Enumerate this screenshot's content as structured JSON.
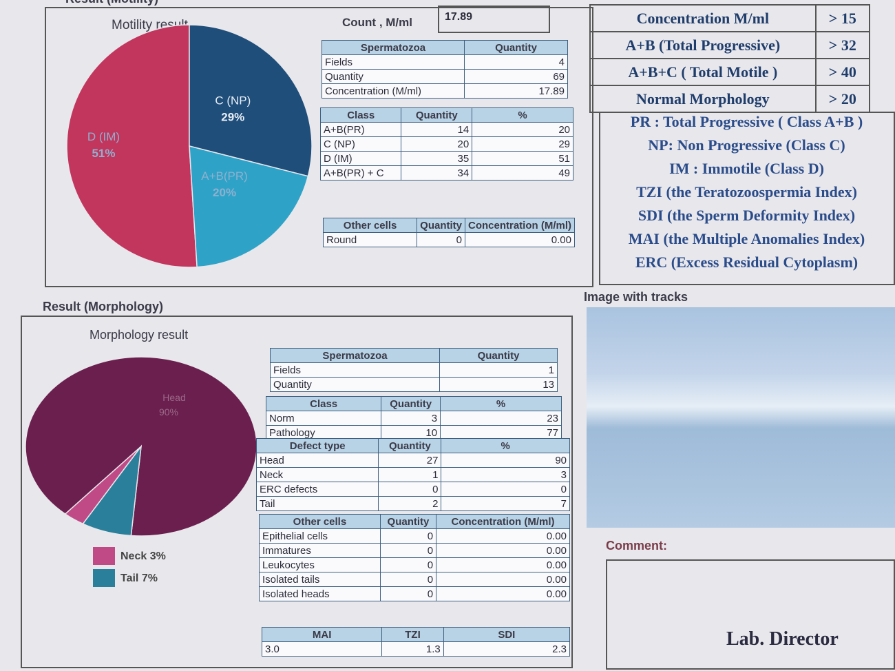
{
  "motility": {
    "section_title": "Result (Motility)",
    "title": "Motility result",
    "count_label": "Count , M/ml",
    "count_value": "17.89",
    "pie": {
      "type": "pie",
      "categories": [
        "D (IM)",
        "C (NP)",
        "A+B(PR)"
      ],
      "values": [
        51,
        29,
        20
      ],
      "value_labels": [
        "51%",
        "29%",
        "20%"
      ],
      "colors": [
        "#c2365e",
        "#1f4e7a",
        "#2ea3c7"
      ]
    },
    "spermatozoa_table": {
      "header": [
        "Spermatozoa",
        "Quantity"
      ],
      "rows": [
        [
          "Fields",
          "4"
        ],
        [
          "Quantity",
          "69"
        ],
        [
          "Concentration (M/ml)",
          "17.89"
        ]
      ]
    },
    "class_table": {
      "header": [
        "Class",
        "Quantity",
        "%"
      ],
      "rows": [
        [
          "A+B(PR)",
          "14",
          "20"
        ],
        [
          "C (NP)",
          "20",
          "29"
        ],
        [
          "D (IM)",
          "35",
          "51"
        ],
        [
          "A+B(PR) + C",
          "34",
          "49"
        ]
      ]
    },
    "other_cells_table": {
      "header": [
        "Other cells",
        "Quantity",
        "Concentration (M/ml)"
      ],
      "rows": [
        [
          "Round",
          "0",
          "0.00"
        ]
      ]
    }
  },
  "reference": {
    "rows": [
      [
        "Concentration M/ml",
        "> 15"
      ],
      [
        "A+B (Total Progressive)",
        "> 32"
      ],
      [
        "A+B+C ( Total Motile )",
        "> 40"
      ],
      [
        "Normal Morphology",
        "> 20"
      ]
    ]
  },
  "abbreviations": [
    "PR : Total Progressive ( Class A+B )",
    "NP: Non Progressive (Class C)",
    "IM : Immotile (Class D)",
    "TZI (the Teratozoospermia Index)",
    "SDI (the Sperm Deformity Index)",
    "MAI (the Multiple Anomalies Index)",
    "ERC (Excess Residual Cytoplasm)"
  ],
  "morphology": {
    "section_title": "Result (Morphology)",
    "title": "Morphology result",
    "pie": {
      "type": "pie",
      "categories": [
        "Head",
        "Neck",
        "Tail"
      ],
      "values": [
        90,
        3,
        7
      ],
      "value_labels": [
        "90%",
        "3%",
        "7%"
      ],
      "colors": [
        "#6b1f4e",
        "#c04a86",
        "#2a7f9a"
      ]
    },
    "spermatozoa_table": {
      "header": [
        "Spermatozoa",
        "Quantity"
      ],
      "rows": [
        [
          "Fields",
          "1"
        ],
        [
          "Quantity",
          "13"
        ]
      ]
    },
    "class_table": {
      "header": [
        "Class",
        "Quantity",
        "%"
      ],
      "rows": [
        [
          "Norm",
          "3",
          "23"
        ],
        [
          "Pathology",
          "10",
          "77"
        ]
      ]
    },
    "defect_table": {
      "header": [
        "Defect type",
        "Quantity",
        "%"
      ],
      "rows": [
        [
          "Head",
          "27",
          "90"
        ],
        [
          "Neck",
          "1",
          "3"
        ],
        [
          "ERC defects",
          "0",
          "0"
        ],
        [
          "Tail",
          "2",
          "7"
        ]
      ]
    },
    "other_cells_table": {
      "header": [
        "Other cells",
        "Quantity",
        "Concentration (M/ml)"
      ],
      "rows": [
        [
          "Epithelial cells",
          "0",
          "0.00"
        ],
        [
          "Immatures",
          "0",
          "0.00"
        ],
        [
          "Leukocytes",
          "0",
          "0.00"
        ],
        [
          "Isolated tails",
          "0",
          "0.00"
        ],
        [
          "Isolated heads",
          "0",
          "0.00"
        ]
      ]
    },
    "index_table": {
      "header": [
        "MAI",
        "TZI",
        "SDI"
      ],
      "rows": [
        [
          "3.0",
          "1.3",
          "2.3"
        ]
      ]
    }
  },
  "image_title": "Image with tracks",
  "comment_label": "Comment:",
  "signature": "Lab. Director"
}
